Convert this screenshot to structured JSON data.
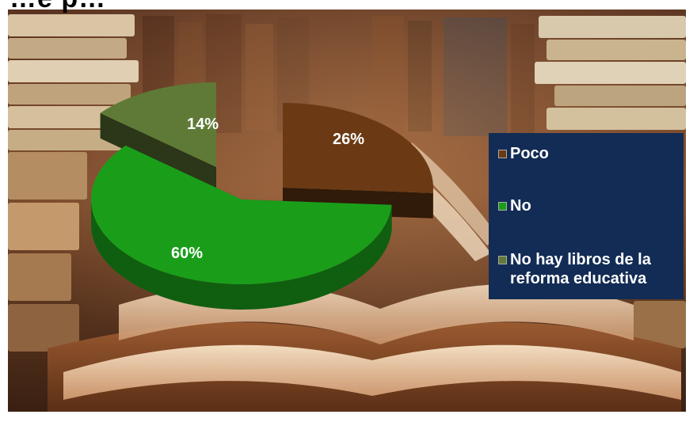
{
  "title_fragment": "…e p…",
  "chart_data": {
    "type": "pie",
    "three_d": true,
    "categories": [
      "Poco",
      "No",
      "No hay libros de la reforma educativa"
    ],
    "values": [
      26,
      60,
      14
    ],
    "data_labels": [
      "26%",
      "60%",
      "14%"
    ],
    "colors": [
      "#6b3a14",
      "#1a9e1a",
      "#5f7a36"
    ],
    "legend_position": "right",
    "exploded": true
  }
}
